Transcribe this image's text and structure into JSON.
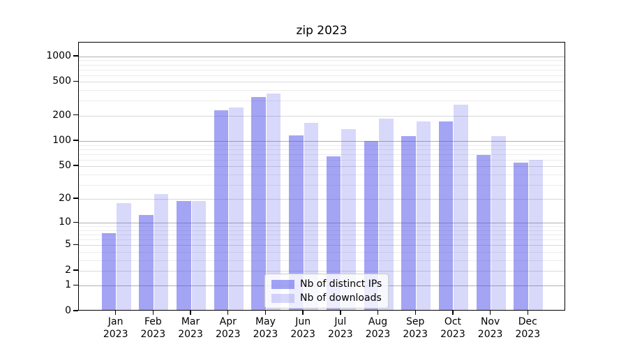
{
  "title": "zip 2023",
  "chart_data": {
    "type": "bar",
    "title": "zip 2023",
    "categories": [
      "Jan 2023",
      "Feb 2023",
      "Mar 2023",
      "Apr 2023",
      "May 2023",
      "Jun 2023",
      "Jul 2023",
      "Aug 2023",
      "Sep 2023",
      "Oct 2023",
      "Nov 2023",
      "Dec 2023"
    ],
    "month_labels": [
      "Jan",
      "Feb",
      "Mar",
      "Apr",
      "May",
      "Jun",
      "Jul",
      "Aug",
      "Sep",
      "Oct",
      "Nov",
      "Dec"
    ],
    "year_label": "2023",
    "series": [
      {
        "name": "Nb of distinct IPs",
        "color": "rgba(70,70,235,0.49)",
        "values": [
          7,
          12,
          18,
          225,
          320,
          113,
          63,
          97,
          111,
          163,
          66,
          53
        ]
      },
      {
        "name": "Nb of downloads",
        "color": "rgba(70,70,235,0.21)",
        "values": [
          17,
          22,
          18,
          240,
          350,
          158,
          133,
          178,
          165,
          260,
          110,
          58
        ]
      }
    ],
    "xlabel": "",
    "ylabel": "",
    "yscale": "log1p",
    "y_tick_values": [
      0,
      1,
      2,
      5,
      10,
      20,
      50,
      100,
      200,
      500,
      1000
    ],
    "ylim": [
      0,
      1455
    ],
    "grid": true,
    "legend_position": "lower center",
    "grid_colors": {
      "decade": "#b0b0b0",
      "labeled": "#d9d9d9",
      "minor": "#ececec"
    }
  },
  "legend": {
    "items": [
      {
        "label": "Nb of distinct IPs"
      },
      {
        "label": "Nb of downloads"
      }
    ]
  }
}
